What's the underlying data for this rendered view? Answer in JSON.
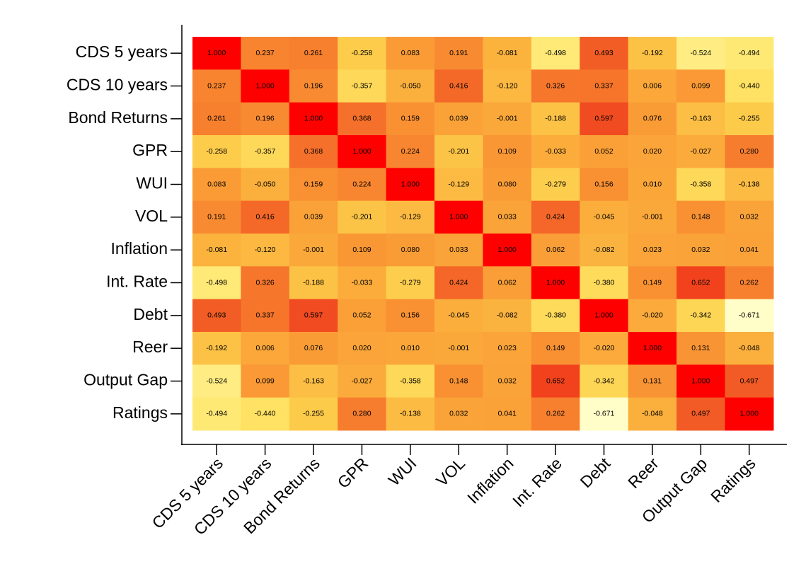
{
  "chart_data": {
    "type": "heatmap",
    "x_categories": [
      "CDS 5 years",
      "CDS 10 years",
      "Bond Returns",
      "GPR",
      "WUI",
      "VOL",
      "Inflation",
      "Int. Rate",
      "Debt",
      "Reer",
      "Output Gap",
      "Ratings"
    ],
    "y_categories": [
      "CDS 5 years",
      "CDS 10 years",
      "Bond Returns",
      "GPR",
      "WUI",
      "VOL",
      "Inflation",
      "Int. Rate",
      "Debt",
      "Reer",
      "Output Gap",
      "Ratings"
    ],
    "colors": [
      "#fffdc8",
      "#ffe566",
      "#fdcb4a",
      "#fbae3c",
      "#f98f32",
      "#f56f2a",
      "#f04e22",
      "#f52a14",
      "#ff0000"
    ],
    "values": [
      [
        1.0,
        0.237,
        0.261,
        -0.258,
        0.083,
        0.191,
        -0.081,
        -0.498,
        0.493,
        -0.192,
        -0.524,
        -0.494
      ],
      [
        0.237,
        1.0,
        0.196,
        -0.357,
        -0.05,
        0.416,
        -0.12,
        0.326,
        0.337,
        0.006,
        0.099,
        -0.44
      ],
      [
        0.261,
        0.196,
        1.0,
        0.368,
        0.159,
        0.039,
        -0.001,
        -0.188,
        0.597,
        0.076,
        -0.163,
        -0.255
      ],
      [
        -0.258,
        -0.357,
        0.368,
        1.0,
        0.224,
        -0.201,
        0.109,
        -0.033,
        0.052,
        0.02,
        -0.027,
        0.28
      ],
      [
        0.083,
        -0.05,
        0.159,
        0.224,
        1.0,
        -0.129,
        0.08,
        -0.279,
        0.156,
        0.01,
        -0.358,
        -0.138
      ],
      [
        0.191,
        0.416,
        0.039,
        -0.201,
        -0.129,
        1.0,
        0.033,
        0.424,
        -0.045,
        -0.001,
        0.148,
        0.032
      ],
      [
        -0.081,
        -0.12,
        -0.001,
        0.109,
        0.08,
        0.033,
        1.0,
        0.062,
        -0.082,
        0.023,
        0.032,
        0.041
      ],
      [
        -0.498,
        0.326,
        -0.188,
        -0.033,
        -0.279,
        0.424,
        0.062,
        1.0,
        -0.38,
        0.149,
        0.652,
        0.262
      ],
      [
        0.493,
        0.337,
        0.597,
        0.052,
        0.156,
        -0.045,
        -0.082,
        -0.38,
        1.0,
        -0.02,
        -0.342,
        -0.671
      ],
      [
        -0.192,
        0.006,
        0.076,
        0.02,
        0.01,
        -0.001,
        0.023,
        0.149,
        -0.02,
        1.0,
        0.131,
        -0.048
      ],
      [
        -0.524,
        0.099,
        -0.163,
        -0.027,
        -0.358,
        0.148,
        0.032,
        0.652,
        -0.342,
        0.131,
        1.0,
        0.497
      ],
      [
        -0.494,
        -0.44,
        -0.255,
        0.28,
        -0.138,
        0.032,
        0.041,
        0.262,
        -0.671,
        -0.048,
        0.497,
        1.0
      ]
    ],
    "value_labels": [
      [
        "1.000",
        "0.237",
        "0.261",
        "-0.258",
        "0.083",
        "0.191",
        "-0.081",
        "-0.498",
        "0.493",
        "-0.192",
        "-0.524",
        "-0.494"
      ],
      [
        "0.237",
        "1.000",
        "0.196",
        "-0.357",
        "-0.050",
        "0.416",
        "-0.120",
        "0.326",
        "0.337",
        "0.006",
        "0.099",
        "-0.440"
      ],
      [
        "0.261",
        "0.196",
        "1.000",
        "0.368",
        "0.159",
        "0.039",
        "-0.001",
        "-0.188",
        "0.597",
        "0.076",
        "-0.163",
        "-0.255"
      ],
      [
        "-0.258",
        "-0.357",
        "0.368",
        "1.000",
        "0.224",
        "-0.201",
        "0.109",
        "-0.033",
        "0.052",
        "0.020",
        "-0.027",
        "0.280"
      ],
      [
        "0.083",
        "-0.050",
        "0.159",
        "0.224",
        "1.000",
        "-0.129",
        "0.080",
        "-0.279",
        "0.156",
        "0.010",
        "-0.358",
        "-0.138"
      ],
      [
        "0.191",
        "0.416",
        "0.039",
        "-0.201",
        "-0.129",
        "1.000",
        "0.033",
        "0.424",
        "-0.045",
        "-0.001",
        "0.148",
        "0.032"
      ],
      [
        "-0.081",
        "-0.120",
        "-0.001",
        "0.109",
        "0.080",
        "0.033",
        "1.000",
        "0.062",
        "-0.082",
        "0.023",
        "0.032",
        "0.041"
      ],
      [
        "-0.498",
        "0.326",
        "-0.188",
        "-0.033",
        "-0.279",
        "0.424",
        "0.062",
        "1.000",
        "-0.380",
        "0.149",
        "0.652",
        "0.262"
      ],
      [
        "0.493",
        "0.337",
        "0.597",
        "0.052",
        "0.156",
        "-0.045",
        "-0.082",
        "-0.380",
        "1.000",
        "-0.020",
        "-0.342",
        "-0.671"
      ],
      [
        "-0.192",
        "0.006",
        "0.076",
        "0.020",
        "0.010",
        "-0.001",
        "0.023",
        "0.149",
        "-0.020",
        "1.000",
        "0.131",
        "-0.048"
      ],
      [
        "-0.524",
        "0.099",
        "-0.163",
        "-0.027",
        "-0.358",
        "0.148",
        "0.032",
        "0.652",
        "-0.342",
        "0.131",
        "1.000",
        "0.497"
      ],
      [
        "-0.494",
        "-0.440",
        "-0.255",
        "0.280",
        "-0.138",
        "0.032",
        "0.041",
        "0.262",
        "-0.671",
        "-0.048",
        "0.497",
        "1.000"
      ]
    ]
  }
}
